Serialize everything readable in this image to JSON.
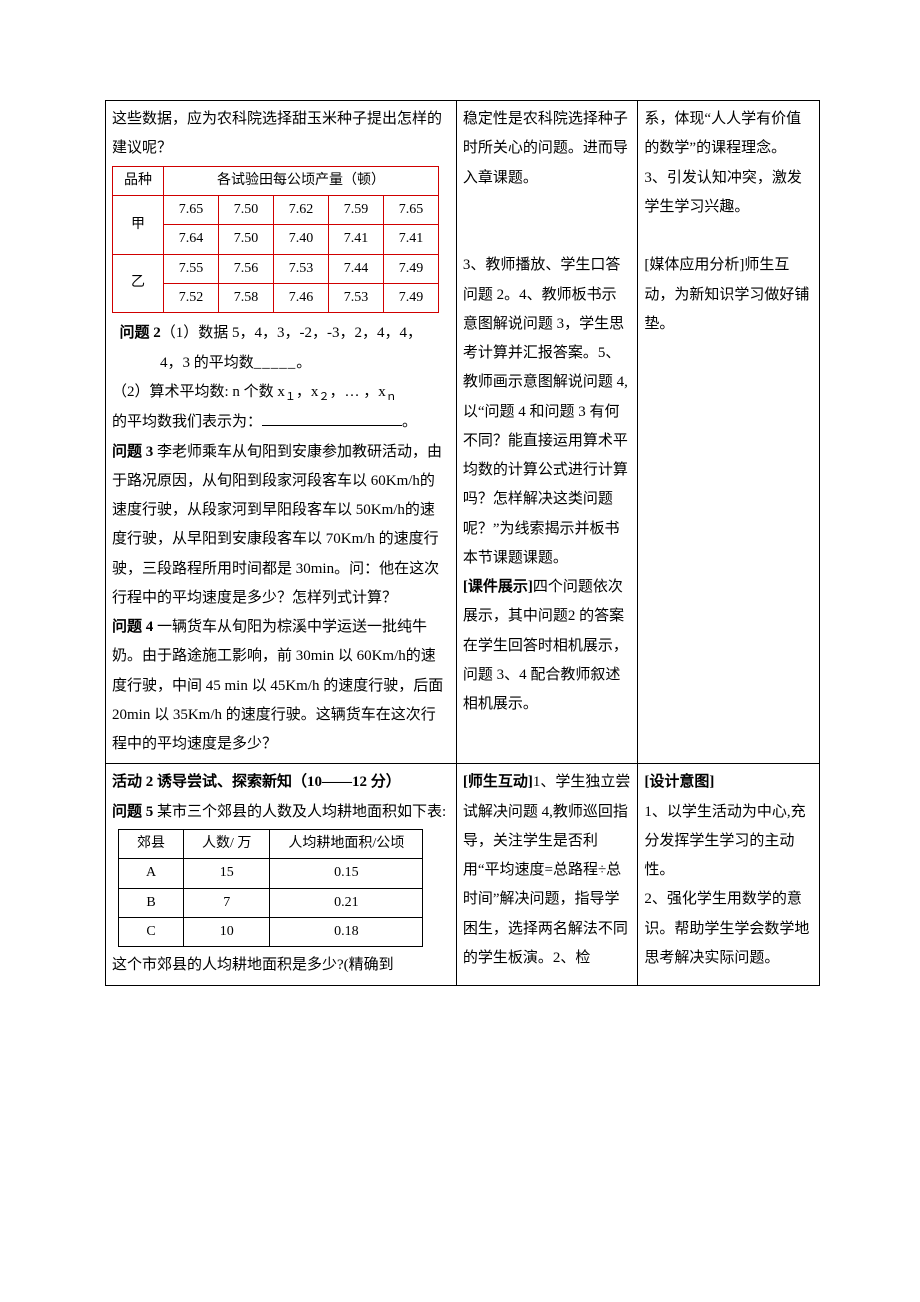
{
  "row1": {
    "col1": {
      "intro": "这些数据，应为农科院选择甜玉米种子提出怎样的建议呢？",
      "red_table": {
        "header_left": "品种",
        "header_right": "各试验田每公顷产量（顿）",
        "rows": [
          {
            "label": "甲",
            "data": [
              [
                "7.65",
                "7.50",
                "7.62",
                "7.59",
                "7.65"
              ],
              [
                "7.64",
                "7.50",
                "7.40",
                "7.41",
                "7.41"
              ]
            ]
          },
          {
            "label": "乙",
            "data": [
              [
                "7.55",
                "7.56",
                "7.53",
                "7.44",
                "7.49"
              ],
              [
                "7.52",
                "7.58",
                "7.46",
                "7.53",
                "7.49"
              ]
            ]
          }
        ]
      },
      "q2_title": "问题 2",
      "q2_line1a": "（1）数据 5，4，3，-2，-3，2，4，4，",
      "q2_line1b": "4，3 的平均数",
      "q2_dash": "_____",
      "q2_period": "。",
      "q2_line2a": "（2）算术平均数: n 个数 x",
      "q2_sub1": "１",
      "q2_mid": "，x",
      "q2_sub2": "２",
      "q2_mid2": "，…  ，x",
      "q2_subn": "ｎ",
      "q2_line2b": "的平均数我们表示为：",
      "q2_blank_end": "。",
      "q3_title": "问题 3",
      "q3_text": "   李老师乘车从旬阳到安康参加教研活动，由于路况原因，从旬阳到段家河段客车以 60Km/h的速度行驶，从段家河到早阳段客车以 50Km/h的速度行驶，从早阳到安康段客车以 70Km/h 的速度行驶，三段路程所用时间都是 30min。问：他在这次行程中的平均速度是多少？怎样列式计算？",
      "q4_title": "问题 4",
      "q4_text": "   一辆货车从旬阳为棕溪中学运送一批纯牛奶。由于路途施工影响，前 30min 以 60Km/h的速度行驶，中间 45 min 以 45Km/h 的速度行驶，后面 20min 以 35Km/h 的速度行驶。这辆货车在这次行程中的平均速度是多少？"
    },
    "col2": {
      "p1": "稳定性是农科院选择种子时所关心的问题。进而导入章课题。",
      "p2": "3、教师播放、学生口答问题 2。4、教师板书示意图解说问题 3，学生思考计算并汇报答案。5、教师画示意图解说问题 4,以“问题 4 和问题 3 有何不同？能直接运用算术平均数的计算公式进行计算吗？怎样解决这类问题呢？”为线索揭示并板书本节课题课题。",
      "p3_label": "[课件展示]",
      "p3_text": "四个问题依次展示，其中问题2 的答案在学生回答时相机展示，问题 3、4 配合教师叙述相机展示。"
    },
    "col3": {
      "p1": "系，体现“人人学有价值的数学”的课程理念。",
      "p2": "3、引发认知冲突，激发学生学习兴趣。",
      "p3": "[媒体应用分析]师生互动，为新知识学习做好铺垫。"
    }
  },
  "row2": {
    "col1": {
      "act_title": "活动 2   诱导尝试、探索新知（10——12 分）",
      "q5_title": "问题 5",
      "q5_text": " 某市三个郊县的人数及人均耕地面积如下表:",
      "county_table": {
        "headers": [
          "郊县",
          "人数/ 万",
          "人均耕地面积/公顷"
        ],
        "rows": [
          [
            "A",
            "15",
            "0.15"
          ],
          [
            "B",
            "7",
            "0.21"
          ],
          [
            "C",
            "10",
            "0.18"
          ]
        ]
      },
      "q5_after": "这个市郊县的人均耕地面积是多少?(精确到"
    },
    "col2": {
      "label": "[师生互动]",
      "text": "1、学生独立尝试解决问题 4,教师巡回指导，关注学生是否利用“平均速度=总路程÷总时间”解决问题，指导学困生，选择两名解法不同的学生板演。2、检"
    },
    "col3": {
      "label": "[设计意图]",
      "p1": "1、以学生活动为中心,充分发挥学生学习的主动性。",
      "p2": "2、强化学生用数学的意识。帮助学生学会数学地思考解决实际问题。"
    }
  }
}
